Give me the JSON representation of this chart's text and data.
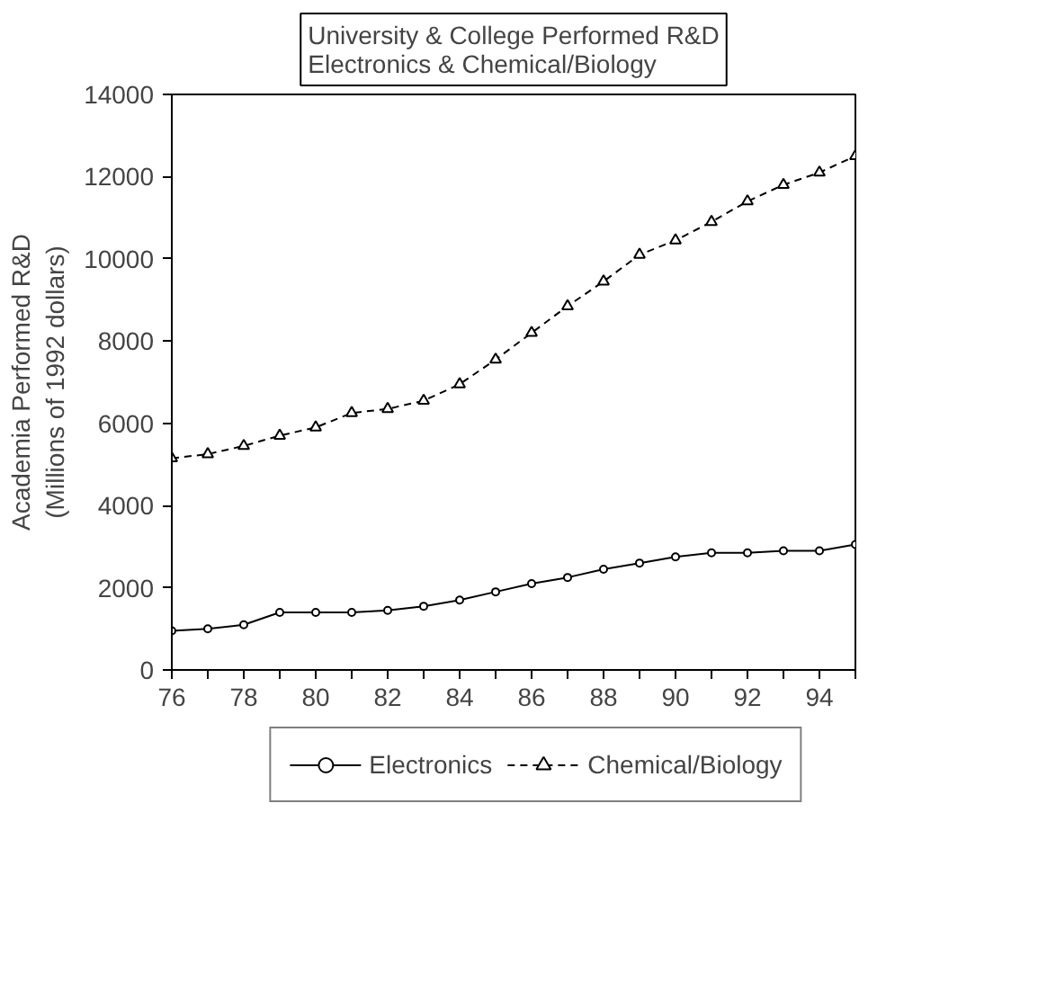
{
  "chart_data": {
    "type": "line",
    "title": "University & College Performed R&D\nElectronics & Chemical/Biology",
    "ylabel": "Academia Performed R&D\n(Millions of 1992 dollars)",
    "x": [
      76,
      77,
      78,
      79,
      80,
      81,
      82,
      83,
      84,
      85,
      86,
      87,
      88,
      89,
      90,
      91,
      92,
      93,
      94,
      95
    ],
    "series": [
      {
        "name": "Electronics",
        "color": "#000000",
        "marker": "circle",
        "line_style": "solid",
        "values": [
          950,
          1000,
          1100,
          1400,
          1400,
          1400,
          1450,
          1550,
          1700,
          1900,
          2100,
          2250,
          2450,
          2600,
          2750,
          2850,
          2850,
          2900,
          2900,
          3050
        ]
      },
      {
        "name": "Chemical/Biology",
        "color": "#000000",
        "marker": "triangle",
        "line_style": "dashed",
        "values": [
          5150,
          5250,
          5450,
          5700,
          5900,
          6250,
          6350,
          6550,
          6950,
          7550,
          8200,
          8850,
          9450,
          10100,
          10450,
          10900,
          11400,
          11800,
          12100,
          12500
        ]
      }
    ],
    "xlim": [
      76,
      95
    ],
    "ylim": [
      0,
      14000
    ],
    "xticks": [
      76,
      {
        "value": 77,
        "label": null
      },
      78,
      {
        "value": 79,
        "label": null
      },
      80,
      {
        "value": 81,
        "label": null
      },
      82,
      {
        "value": 83,
        "label": null
      },
      84,
      {
        "value": 85,
        "label": null
      },
      86,
      {
        "value": 87,
        "label": null
      },
      88,
      {
        "value": 89,
        "label": null
      },
      90,
      {
        "value": 91,
        "label": null
      },
      92,
      {
        "value": 93,
        "label": null
      },
      94,
      {
        "value": 95,
        "label": null
      }
    ],
    "yticks": [
      0,
      2000,
      4000,
      6000,
      8000,
      10000,
      12000,
      14000
    ],
    "grid": false,
    "legend": "bottom"
  }
}
